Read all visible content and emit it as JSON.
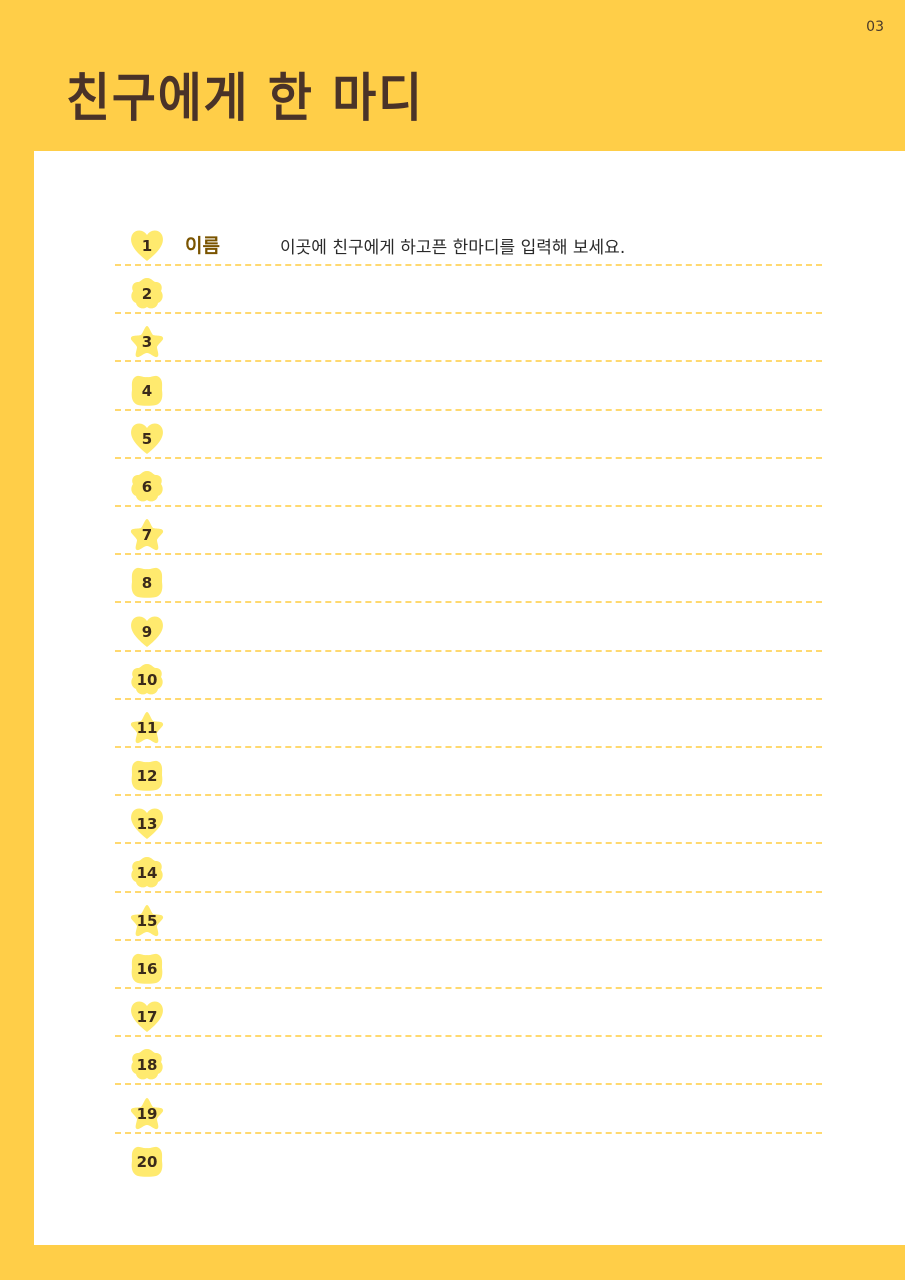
{
  "page_number": "03",
  "title": "친구에게 한 마디",
  "colors": {
    "background": "#FFCE48",
    "badge": "#FFEA6E",
    "line": "#FFD970",
    "title": "#4a3328"
  },
  "first_row": {
    "name_label": "이름",
    "message_placeholder": "이곳에 친구에게 하고픈 한마디를 입력해 보세요."
  },
  "rows": [
    {
      "number": "1",
      "shape": "heart"
    },
    {
      "number": "2",
      "shape": "flower"
    },
    {
      "number": "3",
      "shape": "star"
    },
    {
      "number": "4",
      "shape": "blob"
    },
    {
      "number": "5",
      "shape": "heart"
    },
    {
      "number": "6",
      "shape": "flower"
    },
    {
      "number": "7",
      "shape": "star"
    },
    {
      "number": "8",
      "shape": "blob"
    },
    {
      "number": "9",
      "shape": "heart"
    },
    {
      "number": "10",
      "shape": "flower"
    },
    {
      "number": "11",
      "shape": "star"
    },
    {
      "number": "12",
      "shape": "blob"
    },
    {
      "number": "13",
      "shape": "heart"
    },
    {
      "number": "14",
      "shape": "flower"
    },
    {
      "number": "15",
      "shape": "star"
    },
    {
      "number": "16",
      "shape": "blob"
    },
    {
      "number": "17",
      "shape": "heart"
    },
    {
      "number": "18",
      "shape": "flower"
    },
    {
      "number": "19",
      "shape": "star"
    },
    {
      "number": "20",
      "shape": "blob"
    }
  ]
}
